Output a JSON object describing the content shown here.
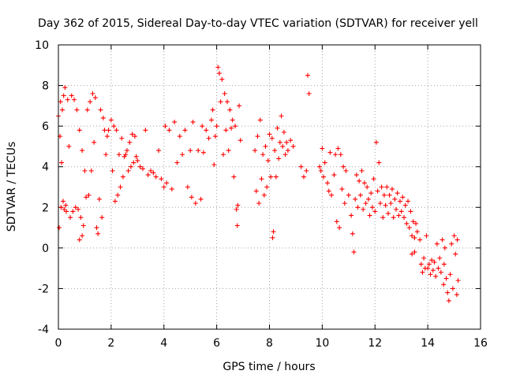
{
  "chart_data": {
    "type": "scatter",
    "title": "Day 362 of 2015, Sidereal Day-to-day VTEC variation (SDTVAR) for receiver yell",
    "xlabel": "GPS time / hours",
    "ylabel": "SDTVAR / TECUs",
    "xlim": [
      0,
      16
    ],
    "ylim": [
      -4,
      10
    ],
    "xticks": [
      0,
      2,
      4,
      6,
      8,
      10,
      12,
      14,
      16
    ],
    "yticks": [
      -4,
      -2,
      0,
      2,
      4,
      6,
      8,
      10
    ],
    "xtick_labels": [
      "0",
      "2",
      "4",
      "6",
      "8",
      "10",
      "12",
      "14",
      "16"
    ],
    "ytick_labels": [
      "-4",
      "-2",
      "0",
      "2",
      "4",
      "6",
      "8",
      "10"
    ],
    "grid": true,
    "marker": "+",
    "color": "#ff0000",
    "series": [
      {
        "name": "SDTVAR",
        "points": [
          [
            0.0,
            6.5
          ],
          [
            0.03,
            1.0
          ],
          [
            0.06,
            5.5
          ],
          [
            0.08,
            7.2
          ],
          [
            0.1,
            2.0
          ],
          [
            0.12,
            4.2
          ],
          [
            0.15,
            6.8
          ],
          [
            0.18,
            2.3
          ],
          [
            0.2,
            7.5
          ],
          [
            0.22,
            1.9
          ],
          [
            0.25,
            7.9
          ],
          [
            0.28,
            2.1
          ],
          [
            0.3,
            1.8
          ],
          [
            0.35,
            7.3
          ],
          [
            0.4,
            5.0
          ],
          [
            0.45,
            1.5
          ],
          [
            0.5,
            7.5
          ],
          [
            0.55,
            1.8
          ],
          [
            0.6,
            7.3
          ],
          [
            0.65,
            2.0
          ],
          [
            0.7,
            6.8
          ],
          [
            0.75,
            1.9
          ],
          [
            0.8,
            5.8
          ],
          [
            0.85,
            1.5
          ],
          [
            0.9,
            4.8
          ],
          [
            0.95,
            1.1
          ],
          [
            0.8,
            0.4
          ],
          [
            0.9,
            0.6
          ],
          [
            1.0,
            3.8
          ],
          [
            1.05,
            2.5
          ],
          [
            1.1,
            6.8
          ],
          [
            1.15,
            2.6
          ],
          [
            1.2,
            7.2
          ],
          [
            1.25,
            3.8
          ],
          [
            1.3,
            7.6
          ],
          [
            1.35,
            5.2
          ],
          [
            1.4,
            7.4
          ],
          [
            1.45,
            1.0
          ],
          [
            1.5,
            0.7
          ],
          [
            1.55,
            2.4
          ],
          [
            1.6,
            6.8
          ],
          [
            1.65,
            1.5
          ],
          [
            1.7,
            6.4
          ],
          [
            1.75,
            5.8
          ],
          [
            1.8,
            4.6
          ],
          [
            1.85,
            5.5
          ],
          [
            1.9,
            5.8
          ],
          [
            2.0,
            6.3
          ],
          [
            2.05,
            3.8
          ],
          [
            2.1,
            6.0
          ],
          [
            2.15,
            2.3
          ],
          [
            2.2,
            5.8
          ],
          [
            2.25,
            2.6
          ],
          [
            2.3,
            4.6
          ],
          [
            2.35,
            3.0
          ],
          [
            2.4,
            5.4
          ],
          [
            2.45,
            3.5
          ],
          [
            2.5,
            4.5
          ],
          [
            2.55,
            4.6
          ],
          [
            2.6,
            4.8
          ],
          [
            2.65,
            3.8
          ],
          [
            2.7,
            5.2
          ],
          [
            2.75,
            4.0
          ],
          [
            2.8,
            5.6
          ],
          [
            2.85,
            4.2
          ],
          [
            2.9,
            5.5
          ],
          [
            2.95,
            4.5
          ],
          [
            3.0,
            4.3
          ],
          [
            3.1,
            4.0
          ],
          [
            3.2,
            3.9
          ],
          [
            3.3,
            5.8
          ],
          [
            3.4,
            3.6
          ],
          [
            3.5,
            3.8
          ],
          [
            3.6,
            3.7
          ],
          [
            3.7,
            3.5
          ],
          [
            3.8,
            4.8
          ],
          [
            3.9,
            3.4
          ],
          [
            4.0,
            3.0
          ],
          [
            4.05,
            6.0
          ],
          [
            4.1,
            3.2
          ],
          [
            4.2,
            5.8
          ],
          [
            4.3,
            2.9
          ],
          [
            4.4,
            6.2
          ],
          [
            4.5,
            4.2
          ],
          [
            4.6,
            5.5
          ],
          [
            4.7,
            4.6
          ],
          [
            4.8,
            5.8
          ],
          [
            4.9,
            3.0
          ],
          [
            5.0,
            4.8
          ],
          [
            5.05,
            2.5
          ],
          [
            5.1,
            6.2
          ],
          [
            5.2,
            2.2
          ],
          [
            5.3,
            4.8
          ],
          [
            5.4,
            2.4
          ],
          [
            5.45,
            6.0
          ],
          [
            5.5,
            4.7
          ],
          [
            5.6,
            5.8
          ],
          [
            5.7,
            5.4
          ],
          [
            5.8,
            6.3
          ],
          [
            5.85,
            6.8
          ],
          [
            5.9,
            4.1
          ],
          [
            5.95,
            5.5
          ],
          [
            6.0,
            6.0
          ],
          [
            6.05,
            8.9
          ],
          [
            6.1,
            8.6
          ],
          [
            6.15,
            7.2
          ],
          [
            6.2,
            8.3
          ],
          [
            6.25,
            4.6
          ],
          [
            6.3,
            7.6
          ],
          [
            6.35,
            5.8
          ],
          [
            6.4,
            7.2
          ],
          [
            6.45,
            4.8
          ],
          [
            6.5,
            6.8
          ],
          [
            6.55,
            5.9
          ],
          [
            6.6,
            6.3
          ],
          [
            6.65,
            3.5
          ],
          [
            6.7,
            6.0
          ],
          [
            6.75,
            1.9
          ],
          [
            6.78,
            1.1
          ],
          [
            6.8,
            2.1
          ],
          [
            6.85,
            7.0
          ],
          [
            6.9,
            5.3
          ],
          [
            7.45,
            4.8
          ],
          [
            7.5,
            2.8
          ],
          [
            7.55,
            5.5
          ],
          [
            7.6,
            2.2
          ],
          [
            7.65,
            6.3
          ],
          [
            7.7,
            3.4
          ],
          [
            7.75,
            4.6
          ],
          [
            7.8,
            2.6
          ],
          [
            7.85,
            5.0
          ],
          [
            7.9,
            3.0
          ],
          [
            7.95,
            4.3
          ],
          [
            8.0,
            5.6
          ],
          [
            8.05,
            3.5
          ],
          [
            8.1,
            5.4
          ],
          [
            8.12,
            0.5
          ],
          [
            8.15,
            0.8
          ],
          [
            8.2,
            4.8
          ],
          [
            8.25,
            3.5
          ],
          [
            8.3,
            5.9
          ],
          [
            8.35,
            4.4
          ],
          [
            8.4,
            5.2
          ],
          [
            8.45,
            6.5
          ],
          [
            8.5,
            5.0
          ],
          [
            8.55,
            5.7
          ],
          [
            8.6,
            4.6
          ],
          [
            8.65,
            5.2
          ],
          [
            8.7,
            4.8
          ],
          [
            8.8,
            5.3
          ],
          [
            8.9,
            5.0
          ],
          [
            9.2,
            4.0
          ],
          [
            9.3,
            3.5
          ],
          [
            9.4,
            3.8
          ],
          [
            9.45,
            8.5
          ],
          [
            9.5,
            7.6
          ],
          [
            9.9,
            4.0
          ],
          [
            9.95,
            3.8
          ],
          [
            10.0,
            4.9
          ],
          [
            10.05,
            3.5
          ],
          [
            10.1,
            4.2
          ],
          [
            10.2,
            3.2
          ],
          [
            10.25,
            2.8
          ],
          [
            10.3,
            4.7
          ],
          [
            10.35,
            2.6
          ],
          [
            10.45,
            3.6
          ],
          [
            10.5,
            4.6
          ],
          [
            10.55,
            1.3
          ],
          [
            10.6,
            4.9
          ],
          [
            10.65,
            1.0
          ],
          [
            10.7,
            4.6
          ],
          [
            10.75,
            2.9
          ],
          [
            10.8,
            4.0
          ],
          [
            10.85,
            2.2
          ],
          [
            10.9,
            3.8
          ],
          [
            11.0,
            2.6
          ],
          [
            11.1,
            1.6
          ],
          [
            11.15,
            0.7
          ],
          [
            11.2,
            -0.2
          ],
          [
            11.25,
            2.4
          ],
          [
            11.3,
            3.6
          ],
          [
            11.35,
            2.0
          ],
          [
            11.4,
            3.3
          ],
          [
            11.45,
            2.6
          ],
          [
            11.5,
            3.8
          ],
          [
            11.55,
            1.9
          ],
          [
            11.6,
            3.2
          ],
          [
            11.65,
            2.2
          ],
          [
            11.7,
            3.0
          ],
          [
            11.75,
            2.4
          ],
          [
            11.8,
            1.6
          ],
          [
            11.85,
            2.7
          ],
          [
            11.9,
            2.0
          ],
          [
            11.95,
            3.4
          ],
          [
            12.0,
            1.8
          ],
          [
            12.05,
            5.2
          ],
          [
            12.1,
            2.8
          ],
          [
            12.15,
            4.2
          ],
          [
            12.2,
            2.2
          ],
          [
            12.25,
            3.0
          ],
          [
            12.3,
            1.5
          ],
          [
            12.35,
            2.6
          ],
          [
            12.4,
            2.1
          ],
          [
            12.45,
            3.0
          ],
          [
            12.5,
            1.7
          ],
          [
            12.55,
            2.6
          ],
          [
            12.6,
            2.2
          ],
          [
            12.65,
            2.9
          ],
          [
            12.7,
            1.5
          ],
          [
            12.75,
            2.4
          ],
          [
            12.8,
            1.9
          ],
          [
            12.85,
            2.7
          ],
          [
            12.9,
            1.6
          ],
          [
            12.95,
            2.3
          ],
          [
            13.0,
            1.8
          ],
          [
            13.05,
            2.5
          ],
          [
            13.1,
            1.5
          ],
          [
            13.15,
            2.1
          ],
          [
            13.2,
            1.2
          ],
          [
            13.25,
            2.3
          ],
          [
            13.3,
            1.0
          ],
          [
            13.35,
            1.8
          ],
          [
            13.4,
            0.6
          ],
          [
            13.45,
            1.3
          ],
          [
            13.5,
            0.5
          ],
          [
            13.55,
            1.2
          ],
          [
            13.6,
            0.8
          ],
          [
            13.4,
            -0.3
          ],
          [
            13.5,
            -0.2
          ],
          [
            13.7,
            0.4
          ],
          [
            13.75,
            -0.8
          ],
          [
            13.8,
            -1.2
          ],
          [
            13.85,
            -0.5
          ],
          [
            13.9,
            -1.0
          ],
          [
            13.95,
            0.6
          ],
          [
            14.0,
            -1.0
          ],
          [
            14.05,
            -0.8
          ],
          [
            14.1,
            -1.3
          ],
          [
            14.15,
            -0.6
          ],
          [
            14.2,
            -1.1
          ],
          [
            14.25,
            -0.7
          ],
          [
            14.3,
            -1.4
          ],
          [
            14.35,
            0.2
          ],
          [
            14.4,
            -1.0
          ],
          [
            14.45,
            -0.5
          ],
          [
            14.5,
            -1.2
          ],
          [
            14.55,
            0.4
          ],
          [
            14.6,
            -1.8
          ],
          [
            14.62,
            -0.8
          ],
          [
            14.65,
            0.0
          ],
          [
            14.7,
            -1.5
          ],
          [
            14.75,
            -2.2
          ],
          [
            14.8,
            -2.6
          ],
          [
            14.85,
            -1.3
          ],
          [
            14.9,
            0.2
          ],
          [
            14.95,
            -2.0
          ],
          [
            15.0,
            0.6
          ],
          [
            15.05,
            -0.3
          ],
          [
            15.1,
            -2.3
          ],
          [
            15.12,
            0.4
          ],
          [
            15.15,
            -1.6
          ]
        ]
      }
    ]
  }
}
